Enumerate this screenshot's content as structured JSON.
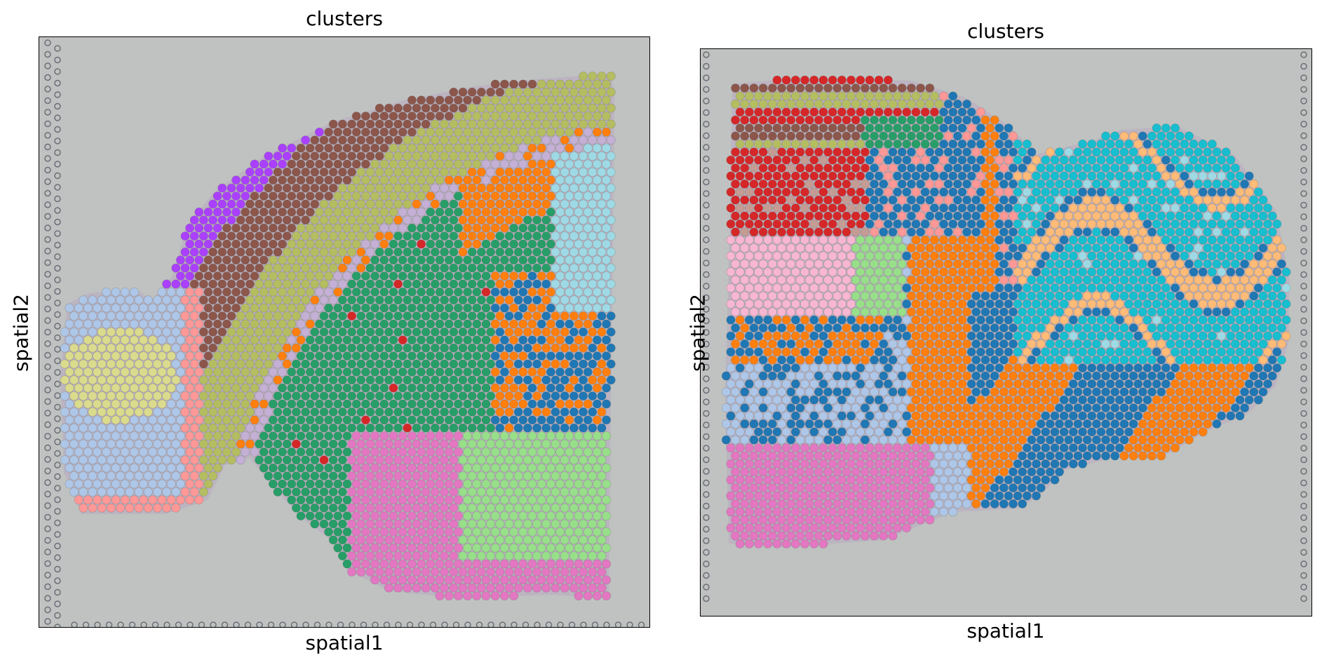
{
  "figure": {
    "palette": [
      "#1f77b4",
      "#ff7f0e",
      "#279e68",
      "#d62728",
      "#aa40fc",
      "#8c564b",
      "#e377c2",
      "#b5bd61",
      "#17becf",
      "#aec7e8",
      "#ffbb78",
      "#98df8a",
      "#ff9896",
      "#c5b0d5",
      "#c49c94",
      "#f7b6d2",
      "#dbdb8d",
      "#9edae5"
    ],
    "background_color": "#bfc2c0",
    "tissue_tint": "#b79cc4"
  },
  "chart_data": [
    {
      "type": "scatter",
      "title": "clusters",
      "xlabel": "spatial1",
      "ylabel": "spatial2",
      "xticks": false,
      "yticks": false,
      "legend": "none",
      "background": "H&E tissue image (coronal brain section, olfactory bulb on left)",
      "regions": [
        {
          "cluster": 4,
          "color": "#aa40fc",
          "desc": "outer cortex band"
        },
        {
          "cluster": 5,
          "color": "#8c564b",
          "desc": "cortex layer band"
        },
        {
          "cluster": 7,
          "color": "#b5bd61",
          "desc": "cortex deep band"
        },
        {
          "cluster": 2,
          "color": "#279e68",
          "desc": "striatum"
        },
        {
          "cluster": 6,
          "color": "#e377c2",
          "desc": "ventral region"
        },
        {
          "cluster": 11,
          "color": "#98df8a",
          "desc": "ventral right"
        },
        {
          "cluster": 0,
          "color": "#1f77b4",
          "desc": "thalamic right"
        },
        {
          "cluster": 1,
          "color": "#ff7f0e",
          "desc": "fiber tracts"
        },
        {
          "cluster": 17,
          "color": "#9edae5",
          "desc": "upper right"
        },
        {
          "cluster": 16,
          "color": "#dbdb8d",
          "desc": "olfactory bulb core"
        },
        {
          "cluster": 9,
          "color": "#aec7e8",
          "desc": "olfactory bulb ring"
        },
        {
          "cluster": 12,
          "color": "#ff9896",
          "desc": "olfactory bulb edge"
        },
        {
          "cluster": 3,
          "color": "#d62728",
          "desc": "surface layer"
        }
      ]
    },
    {
      "type": "scatter",
      "title": "clusters",
      "xlabel": "spatial1",
      "ylabel": "spatial2",
      "xticks": false,
      "yticks": false,
      "legend": "none",
      "background": "H&E tissue image (posterior section, cerebellum on right)",
      "regions": [
        {
          "cluster": 3,
          "color": "#d62728",
          "desc": "dorsal cortex"
        },
        {
          "cluster": 14,
          "color": "#c49c94",
          "desc": "cortex stripes"
        },
        {
          "cluster": 2,
          "color": "#279e68",
          "desc": "hippocampal"
        },
        {
          "cluster": 15,
          "color": "#f7b6d2",
          "desc": "mid-left region"
        },
        {
          "cluster": 6,
          "color": "#e377c2",
          "desc": "lower-left region"
        },
        {
          "cluster": 0,
          "color": "#1f77b4",
          "desc": "brainstem / cerebellum"
        },
        {
          "cluster": 1,
          "color": "#ff7f0e",
          "desc": "white matter"
        },
        {
          "cluster": 8,
          "color": "#17becf",
          "desc": "cerebellar granular"
        },
        {
          "cluster": 10,
          "color": "#ffbb78",
          "desc": "cerebellar molecular"
        },
        {
          "cluster": 9,
          "color": "#aec7e8",
          "desc": "mixed"
        },
        {
          "cluster": 11,
          "color": "#98df8a",
          "desc": "scattered"
        }
      ]
    }
  ]
}
